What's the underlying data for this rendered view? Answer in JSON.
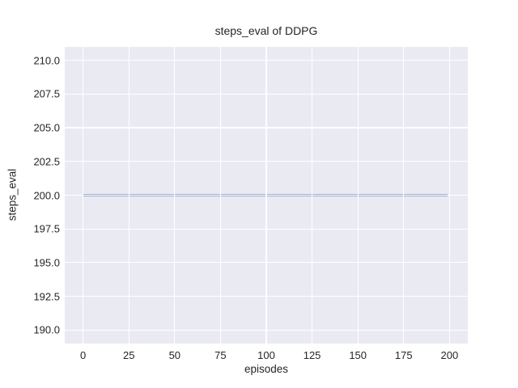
{
  "chart_data": {
    "type": "line",
    "title": "steps_eval of DDPG",
    "xlabel": "episodes",
    "ylabel": "steps_eval",
    "xlim": [
      -10,
      210
    ],
    "ylim": [
      189,
      211
    ],
    "x_ticks": [
      0,
      25,
      50,
      75,
      100,
      125,
      150,
      175,
      200
    ],
    "x_tick_labels": [
      "0",
      "25",
      "50",
      "75",
      "100",
      "125",
      "150",
      "175",
      "200"
    ],
    "y_ticks": [
      190.0,
      192.5,
      195.0,
      197.5,
      200.0,
      202.5,
      205.0,
      207.5,
      210.0
    ],
    "y_tick_labels": [
      "190.0",
      "192.5",
      "195.0",
      "197.5",
      "200.0",
      "202.5",
      "205.0",
      "207.5",
      "210.0"
    ],
    "grid": true,
    "legend": "none",
    "series": [
      {
        "name": "steps_eval",
        "color": "#4c72b0",
        "line_width": 2,
        "points": [
          [
            0,
            200
          ],
          [
            199,
            200
          ]
        ],
        "description": "constant value 200 for every evaluation episode from 0 to 199"
      }
    ],
    "style": {
      "figure_background": "#ffffff",
      "plot_background": "#eaeaf2",
      "grid_color": "#ffffff",
      "text_color": "#262626",
      "theme": "seaborn-darkgrid"
    }
  }
}
